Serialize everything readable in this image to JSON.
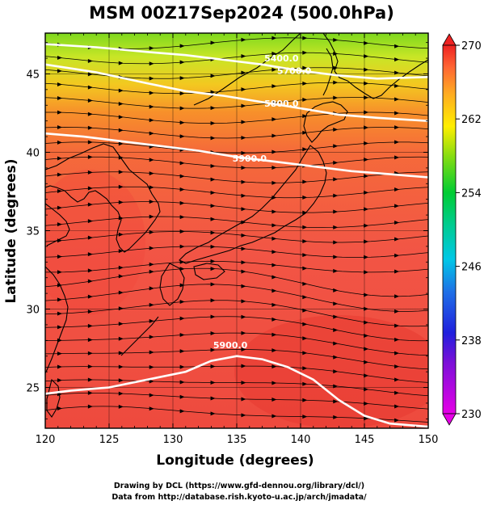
{
  "title": "MSM 00Z17Sep2024 (500.0hPa)",
  "xlabel": "Longitude (degrees)",
  "ylabel": "Latitude  (degrees)",
  "credits": [
    "Drawing by DCL (https://www.gfd-dennou.org/library/dcl/)",
    "Data from http://database.rish.kyoto-u.ac.jp/arch/jmadata/"
  ],
  "map": {
    "lon_range": [
      120,
      150
    ],
    "lat_range": [
      22.4,
      47.6
    ],
    "lon_ticks": [
      120,
      125,
      130,
      135,
      140,
      145,
      150
    ],
    "lon_tick_labels": [
      "120",
      "125",
      "130",
      "135",
      "140",
      "145",
      "150"
    ],
    "lat_ticks": [
      25,
      30,
      35,
      40,
      45
    ],
    "lat_tick_labels": [
      "25",
      "30",
      "35",
      "40",
      "45"
    ],
    "colorbar": {
      "min": 230,
      "max": 270,
      "ticks": [
        230,
        238,
        246,
        254,
        262,
        270
      ],
      "tick_labels": [
        "230",
        "238",
        "246",
        "254",
        "262",
        "270"
      ],
      "colors": [
        "#e600e6",
        "#2020dd",
        "#00c8e6",
        "#00cc33",
        "#ffee00",
        "#ff6633",
        "#ee2222"
      ]
    },
    "contours": [
      {
        "label": "5400.0",
        "label_lon": 138.5,
        "label_lat": 45.8,
        "points": [
          [
            120,
            46.9
          ],
          [
            124,
            46.7
          ],
          [
            128,
            46.4
          ],
          [
            131,
            46.2
          ],
          [
            134,
            45.9
          ],
          [
            137,
            45.6
          ],
          [
            140,
            45.2
          ],
          [
            143,
            44.9
          ],
          [
            146,
            44.7
          ],
          [
            150,
            44.8
          ]
        ]
      },
      {
        "label": "5700.0",
        "label_lon": 139.5,
        "label_lat": 45.0,
        "points": [
          [
            120,
            45.6
          ],
          [
            124,
            45.1
          ],
          [
            128,
            44.4
          ],
          [
            131,
            43.9
          ],
          [
            134,
            43.6
          ],
          [
            137,
            43.2
          ],
          [
            140,
            42.8
          ],
          [
            143,
            42.4
          ],
          [
            146,
            42.2
          ],
          [
            150,
            42.0
          ]
        ]
      },
      {
        "label": "5800.0",
        "label_lon": 138.5,
        "label_lat": 42.9,
        "points": [
          [
            120,
            41.2
          ],
          [
            123,
            41.0
          ],
          [
            126,
            40.7
          ],
          [
            129,
            40.4
          ],
          [
            132,
            40.1
          ],
          [
            135,
            39.7
          ],
          [
            138,
            39.4
          ],
          [
            141,
            39.1
          ],
          [
            144,
            38.8
          ],
          [
            147,
            38.6
          ],
          [
            150,
            38.4
          ]
        ]
      },
      {
        "label": "5900.0",
        "label_lon": 136.0,
        "label_lat": 39.4,
        "points": [
          [
            120,
            24.6
          ],
          [
            122,
            24.8
          ],
          [
            125,
            25.0
          ],
          [
            128,
            25.5
          ],
          [
            131,
            26.0
          ],
          [
            133,
            26.7
          ],
          [
            135,
            27.0
          ],
          [
            137,
            26.8
          ],
          [
            139,
            26.3
          ],
          [
            141,
            25.5
          ],
          [
            143,
            24.2
          ],
          [
            145,
            23.2
          ],
          [
            147,
            22.7
          ],
          [
            150,
            22.5
          ]
        ]
      },
      {
        "label": "5900.0",
        "label_lon": 134.5,
        "label_lat": 27.5,
        "points": []
      }
    ],
    "coast_color": "#000000",
    "vector_color": "#000000"
  }
}
